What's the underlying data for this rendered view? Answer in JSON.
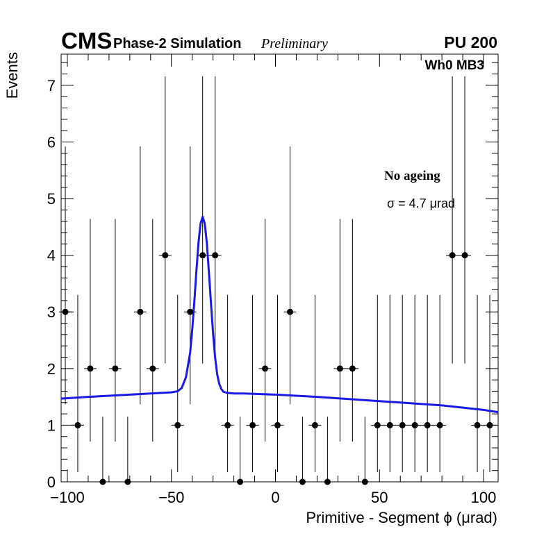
{
  "header": {
    "experiment": "CMS",
    "subtitle": "Phase-2 Simulation",
    "status": "Preliminary",
    "pileup": "PU 200",
    "station": "Wh0 MB3"
  },
  "annotations": {
    "condition": "No ageing",
    "sigma": "σ = 4.7  μrad"
  },
  "chart_data": {
    "type": "scatter",
    "xlabel": "Primitive - Segment ϕ (μrad)",
    "ylabel": "Events",
    "xlim": [
      -103,
      107
    ],
    "ylim": [
      0,
      7.55
    ],
    "x_ticks": [
      -100,
      -50,
      0,
      50,
      100
    ],
    "x_tick_labels": [
      "−100",
      "−50",
      "0",
      "50",
      "100"
    ],
    "y_ticks": [
      0,
      1,
      2,
      3,
      4,
      5,
      6,
      7
    ],
    "y_tick_labels": [
      "0",
      "1",
      "2",
      "3",
      "4",
      "5",
      "6",
      "7"
    ],
    "bin_width": 6,
    "series": [
      {
        "kind": "points",
        "x": [
          -101,
          -95,
          -89,
          -83,
          -77,
          -71,
          -65,
          -59,
          -53,
          -47,
          -41,
          -35,
          -29,
          -23,
          -17,
          -11,
          -5,
          1,
          7,
          13,
          19,
          25,
          31,
          37,
          43,
          49,
          55,
          61,
          67,
          73,
          79,
          85,
          91,
          97,
          103
        ],
        "y": [
          3,
          1,
          2,
          0,
          2,
          0,
          3,
          2,
          4,
          1,
          3,
          4,
          4,
          1,
          0,
          1,
          2,
          1,
          3,
          0,
          1,
          0,
          2,
          2,
          0,
          1,
          1,
          1,
          1,
          1,
          1,
          4,
          4,
          1,
          1
        ],
        "err_low": [
          1.63,
          0.83,
          1.29,
          0,
          1.29,
          0,
          1.63,
          1.29,
          1.91,
          0.83,
          1.63,
          1.91,
          1.91,
          0.83,
          0,
          0.83,
          1.29,
          0.83,
          1.63,
          0,
          0.83,
          0,
          1.29,
          1.29,
          0,
          0.83,
          0.83,
          0.83,
          0.83,
          0.83,
          0.83,
          1.91,
          1.91,
          0.83,
          0.83
        ],
        "err_high": [
          2.92,
          2.3,
          2.64,
          1.15,
          2.64,
          1.15,
          2.92,
          2.64,
          3.16,
          2.3,
          2.92,
          3.16,
          3.16,
          2.3,
          1.15,
          2.3,
          2.64,
          2.3,
          2.92,
          1.15,
          2.3,
          1.15,
          2.64,
          2.64,
          1.15,
          2.3,
          2.3,
          2.3,
          2.3,
          2.3,
          2.3,
          3.16,
          3.16,
          2.3,
          2.3
        ]
      },
      {
        "kind": "fit",
        "color": "#1a1ae6",
        "x": [
          -103,
          -90,
          -80,
          -70,
          -60,
          -55,
          -50,
          -47,
          -45,
          -43,
          -41,
          -40,
          -39,
          -38,
          -37,
          -36,
          -35,
          -34,
          -33,
          -32,
          -31,
          -30,
          -29,
          -28,
          -27,
          -26,
          -25,
          -23,
          -20,
          -15,
          0,
          20,
          40,
          60,
          80,
          100,
          107
        ],
        "y": [
          1.47,
          1.5,
          1.52,
          1.54,
          1.56,
          1.57,
          1.58,
          1.6,
          1.66,
          1.85,
          2.28,
          2.68,
          3.18,
          3.72,
          4.22,
          4.56,
          4.68,
          4.56,
          4.22,
          3.7,
          3.15,
          2.62,
          2.2,
          1.9,
          1.73,
          1.64,
          1.59,
          1.57,
          1.56,
          1.56,
          1.54,
          1.5,
          1.45,
          1.4,
          1.35,
          1.27,
          1.23
        ]
      }
    ]
  }
}
